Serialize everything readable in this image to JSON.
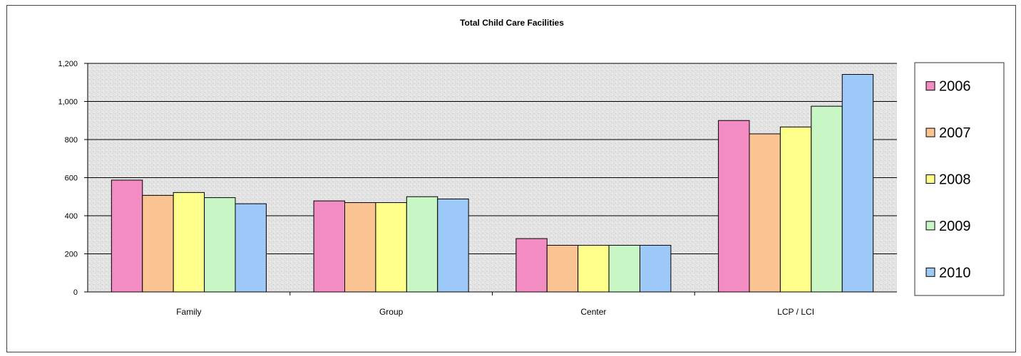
{
  "chart_data": {
    "type": "bar",
    "title": "Total  Child Care Facilities",
    "xlabel": "",
    "ylabel": "",
    "categories": [
      "Family",
      "Group",
      "Center",
      "LCP / LCI"
    ],
    "ylim": [
      0,
      1200
    ],
    "yticks": [
      0,
      200,
      400,
      600,
      800,
      1000,
      1200
    ],
    "ytick_labels": [
      "0",
      "200",
      "400",
      "600",
      "800",
      "1,000",
      "1,200"
    ],
    "grid": true,
    "legend_position": "right",
    "series": [
      {
        "name": "2006",
        "color": "#f48cc4",
        "values": [
          587,
          478,
          280,
          900
        ]
      },
      {
        "name": "2007",
        "color": "#fbc493",
        "values": [
          507,
          469,
          245,
          830
        ]
      },
      {
        "name": "2008",
        "color": "#ffff8c",
        "values": [
          522,
          469,
          245,
          866
        ]
      },
      {
        "name": "2009",
        "color": "#c8f7c5",
        "values": [
          495,
          500,
          245,
          975
        ]
      },
      {
        "name": "2010",
        "color": "#9cc9f8",
        "values": [
          463,
          488,
          245,
          1142
        ]
      }
    ]
  }
}
